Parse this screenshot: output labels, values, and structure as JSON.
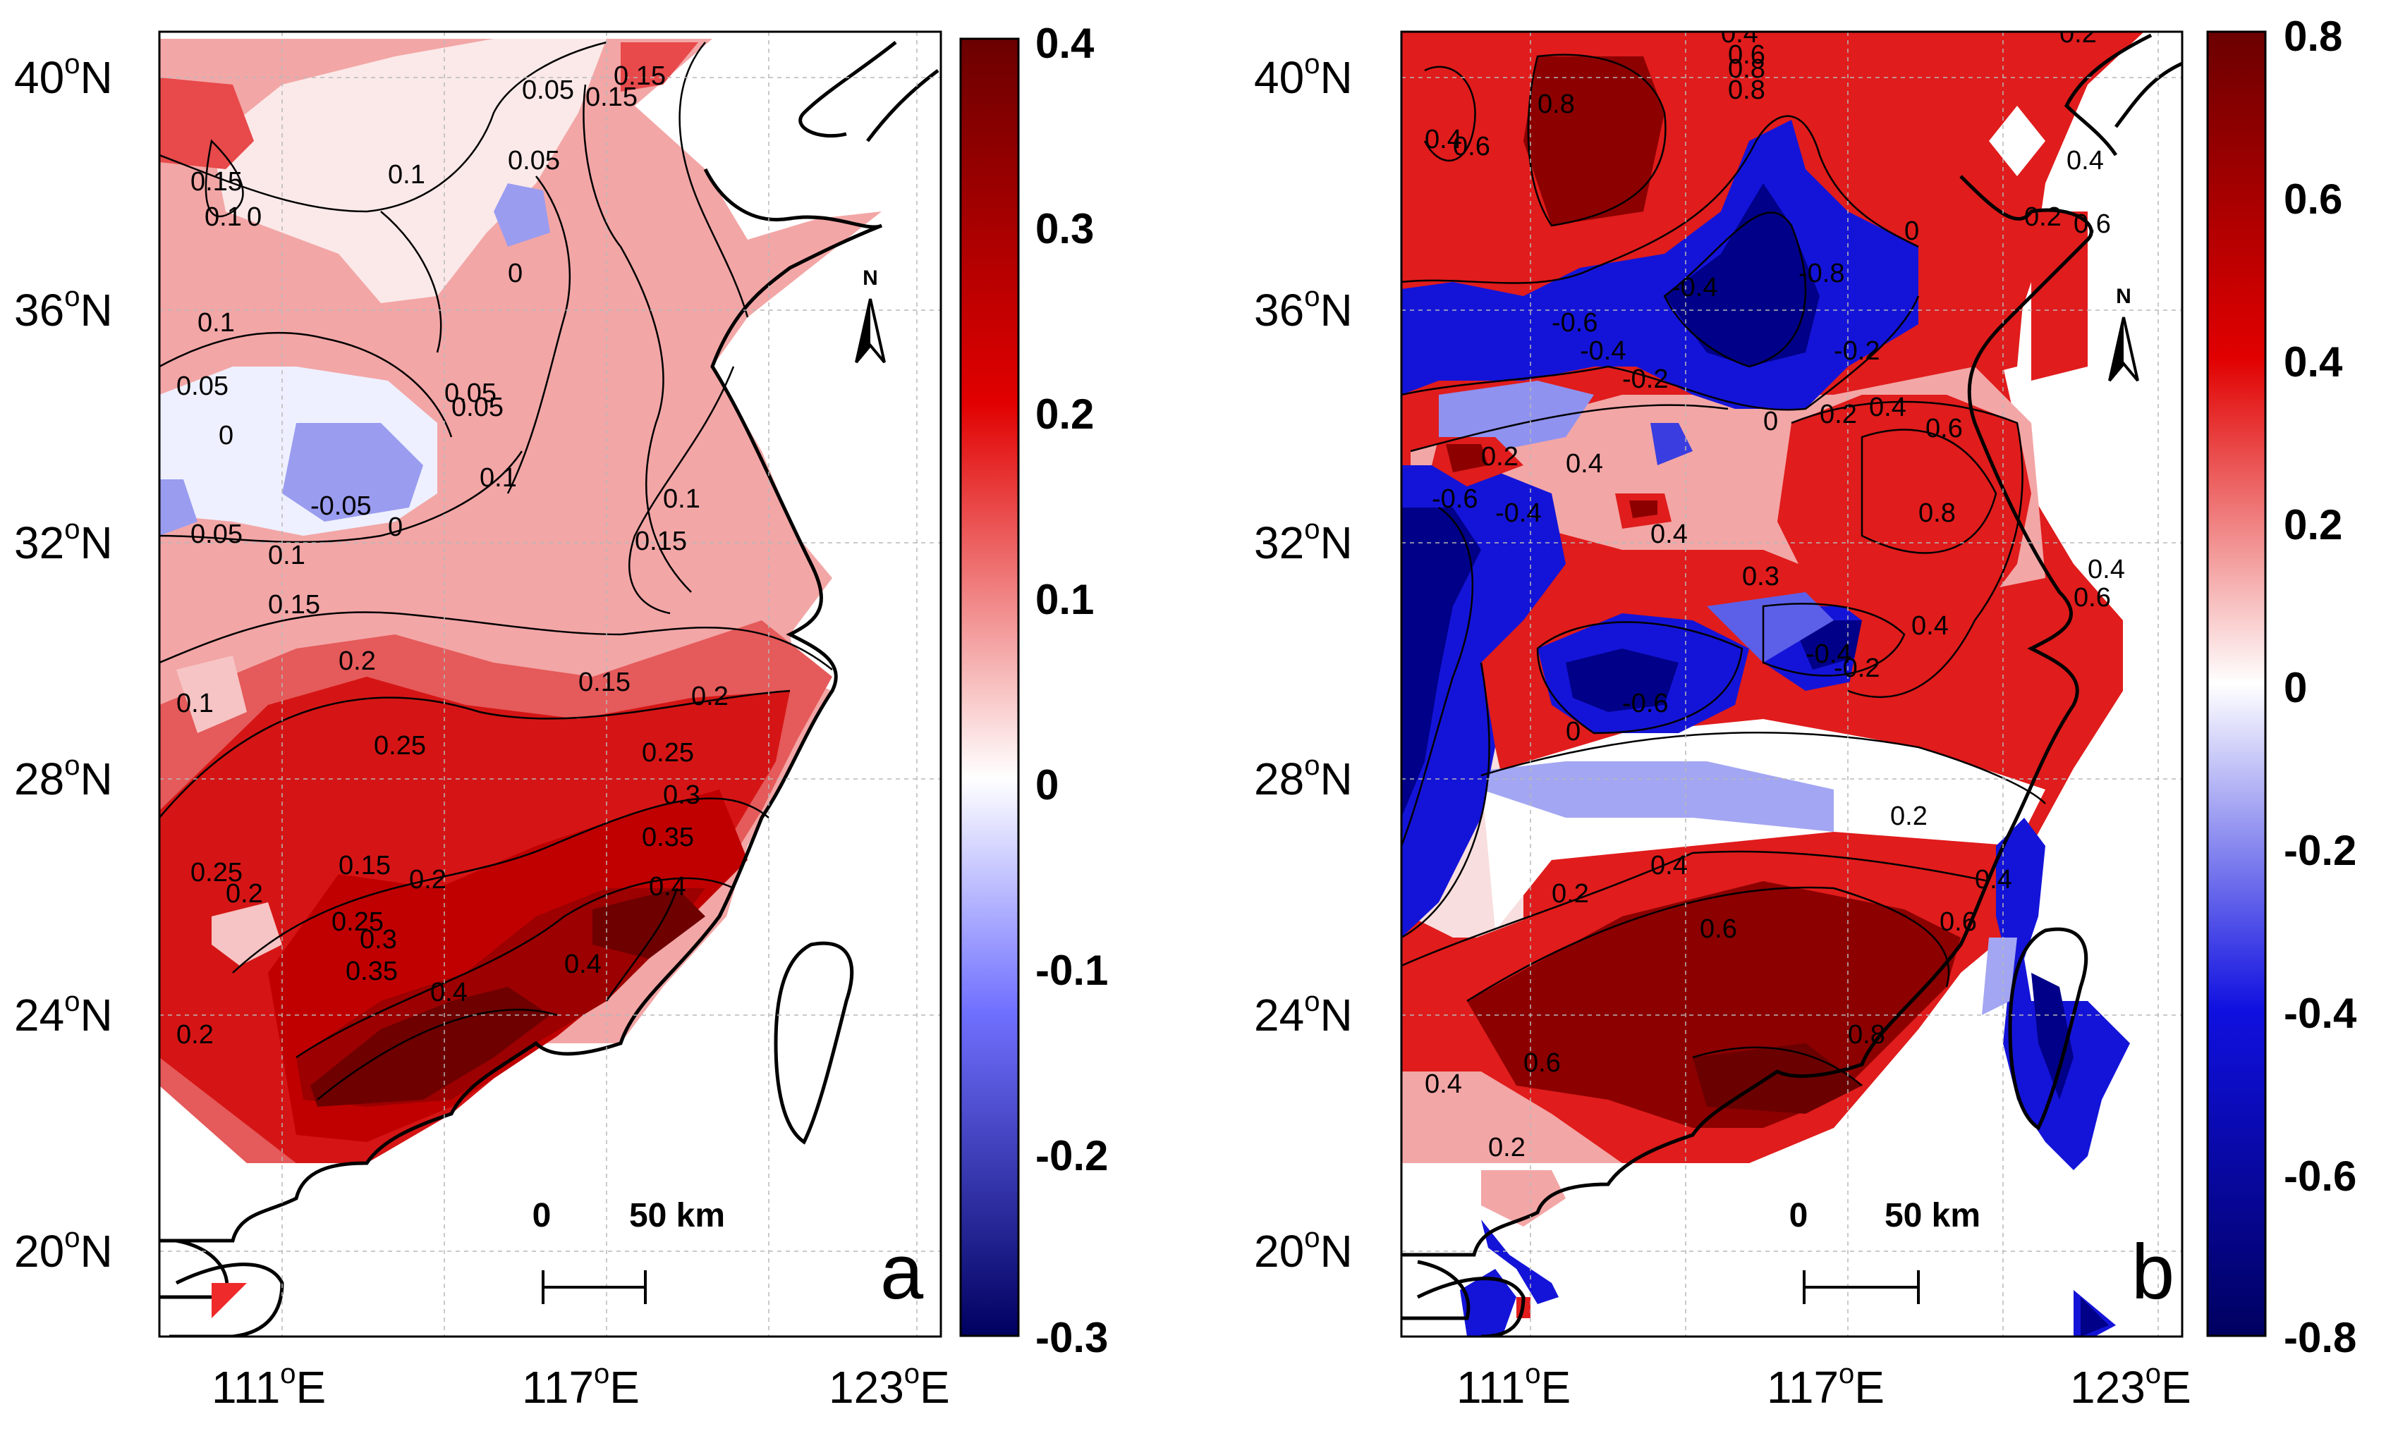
{
  "figure": {
    "panels": [
      {
        "id": "a",
        "letter": "a",
        "north_label": "N",
        "scale_bar": {
          "zero": "0",
          "distance": "50 km"
        },
        "y_ticks": [
          {
            "deg": "40",
            "hemi": "N"
          },
          {
            "deg": "36",
            "hemi": "N"
          },
          {
            "deg": "32",
            "hemi": "N"
          },
          {
            "deg": "28",
            "hemi": "N"
          },
          {
            "deg": "24",
            "hemi": "N"
          },
          {
            "deg": "20",
            "hemi": "N"
          }
        ],
        "x_ticks": [
          {
            "deg": "111",
            "hemi": "E"
          },
          {
            "deg": "117",
            "hemi": "E"
          },
          {
            "deg": "123",
            "hemi": "E"
          }
        ],
        "colorbar": {
          "min": -0.3,
          "max": 0.4,
          "ticks": [
            "0.4",
            "0.3",
            "0.2",
            "0.1",
            "0",
            "-0.1",
            "-0.2",
            "-0.3"
          ]
        },
        "contour_labels": [
          "0.05",
          "0.15",
          "0.15",
          "0.1",
          "0.1",
          "0.05",
          "0.05",
          "0",
          "0.15",
          "0.1",
          "0.05",
          "0",
          "0.05",
          "-0.05",
          "0",
          "0.1",
          "0.1",
          "0.05",
          "0.1",
          "0.15",
          "0.15",
          "0.1",
          "0.2",
          "0.15",
          "0.2",
          "0.25",
          "0.25",
          "0.3",
          "0.35",
          "0.4",
          "0.25",
          "0.2",
          "0.15",
          "0.2",
          "0.25",
          "0.3",
          "0.35",
          "0.4",
          "0.4",
          "0.2",
          "0"
        ]
      },
      {
        "id": "b",
        "letter": "b",
        "north_label": "N",
        "scale_bar": {
          "zero": "0",
          "distance": "50 km"
        },
        "y_ticks": [
          {
            "deg": "40",
            "hemi": "N"
          },
          {
            "deg": "36",
            "hemi": "N"
          },
          {
            "deg": "32",
            "hemi": "N"
          },
          {
            "deg": "28",
            "hemi": "N"
          },
          {
            "deg": "24",
            "hemi": "N"
          },
          {
            "deg": "20",
            "hemi": "N"
          }
        ],
        "x_ticks": [
          {
            "deg": "111",
            "hemi": "E"
          },
          {
            "deg": "117",
            "hemi": "E"
          },
          {
            "deg": "123",
            "hemi": "E"
          }
        ],
        "colorbar": {
          "min": -0.8,
          "max": 0.8,
          "ticks": [
            "0.8",
            "0.6",
            "0.4",
            "0.2",
            "0",
            "-0.2",
            "-0.4",
            "-0.6",
            "-0.8"
          ]
        },
        "contour_labels": [
          "0.4",
          "0.6",
          "0.8",
          "0.2",
          "0.8",
          "0.4",
          "0.6",
          "0.8",
          "0.4",
          "0.6",
          "0.2",
          "0",
          "-0.4",
          "-0.8",
          "-0.6",
          "-0.4",
          "-0.2",
          "-0.2",
          "0.2",
          "0.4",
          "0.6",
          "0.8",
          "0.2",
          "0.4",
          "0.4",
          "-0.6",
          "-0.4",
          "0",
          "0.3",
          "0.4",
          "-0.6",
          "-0.4",
          "-0.2",
          "0",
          "0.2",
          "0.6",
          "0.4",
          "0.2",
          "0.4",
          "0.6",
          "0.8",
          "0.6",
          "0.4",
          "0.2",
          "0.4",
          "0.6"
        ]
      }
    ],
    "colors": {
      "positive_max": "#6b0000",
      "positive_mid": "#e10000",
      "neutral": "#ffffff",
      "negative_mid": "#1010e0",
      "negative_max": "#000060",
      "coastline": "#000000"
    }
  }
}
